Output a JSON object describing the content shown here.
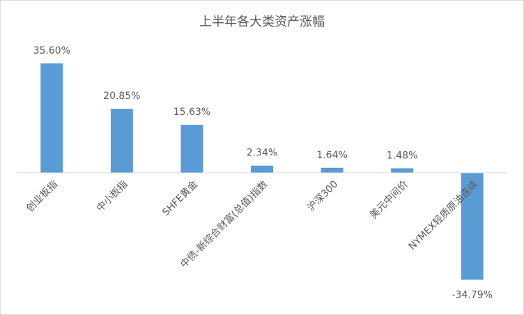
{
  "chart_data": {
    "type": "bar",
    "title": "上半年各大类资产涨幅",
    "categories": [
      "创业板指",
      "中小板指",
      "SHFE黄金",
      "中债-新综合财富(总值)指数",
      "沪深300",
      "美元中间价",
      "NYMEX轻质原油连续"
    ],
    "values": [
      35.6,
      20.85,
      15.63,
      2.34,
      1.64,
      1.48,
      -34.79
    ],
    "value_labels": [
      "35.60%",
      "20.85%",
      "15.63%",
      "2.34%",
      "1.64%",
      "1.48%",
      "-34.79%"
    ],
    "color": "#5b9bd5"
  }
}
